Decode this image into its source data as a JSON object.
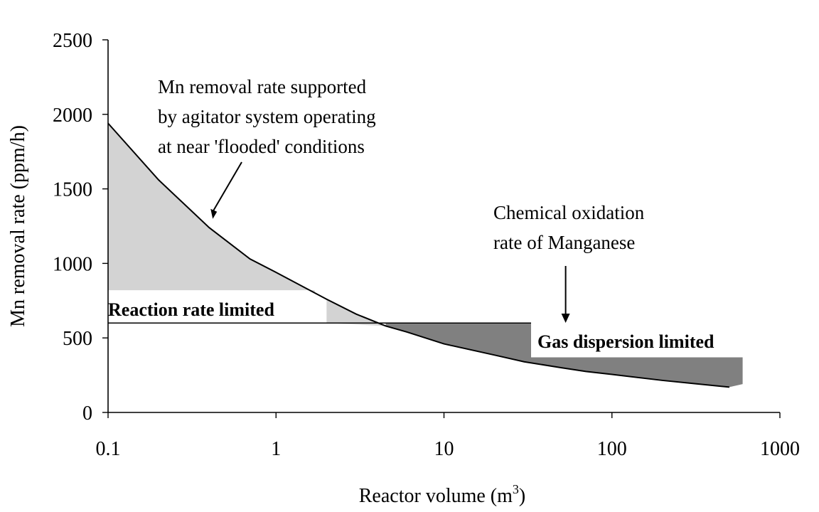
{
  "chart_data": {
    "type": "area",
    "title": "",
    "xlabel": "Reactor volume (m",
    "xlabel_sup": "3",
    "xlabel_close": ")",
    "ylabel": "Mn removal rate (ppm/h)",
    "x_scale": "log",
    "xlim": [
      0.1,
      1000
    ],
    "ylim": [
      0,
      2500
    ],
    "x_ticks": [
      "0.1",
      "1",
      "10",
      "100",
      "1000"
    ],
    "y_ticks": [
      "0",
      "500",
      "1000",
      "1500",
      "2000",
      "2500"
    ],
    "grid": false,
    "series": [
      {
        "name": "",
        "x": [
          0.1,
          0.2,
          0.4,
          0.7,
          1,
          2,
          3,
          4.5,
          6,
          10,
          20,
          30,
          50,
          70,
          100,
          200,
          300,
          500
        ],
        "y": [
          1940,
          1560,
          1240,
          1030,
          940,
          760,
          660,
          580,
          540,
          460,
          385,
          340,
          300,
          275,
          255,
          215,
          195,
          170
        ]
      }
    ],
    "regions": [
      {
        "label": "Reaction rate limited",
        "bound_y": 820,
        "x_range": [
          0.1,
          1.7
        ],
        "color": "#d3d3d3"
      },
      {
        "label": "Gas dispersion limited",
        "bound_y": 600,
        "x_range": [
          4.5,
          33
        ],
        "color": "#808080"
      }
    ],
    "annotations": [
      {
        "lines": [
          "Mn removal rate supported",
          "by agitator system operating",
          "at near 'flooded' conditions"
        ],
        "target": {
          "x": 0.42,
          "y": 1280
        }
      },
      {
        "lines": [
          "Chemical oxidation",
          "rate of Manganese"
        ],
        "target": {
          "x": 53,
          "y": 610
        }
      }
    ],
    "colors": {
      "light_fill": "#d3d3d3",
      "dark_fill": "#808080",
      "curve": "#000000"
    }
  }
}
